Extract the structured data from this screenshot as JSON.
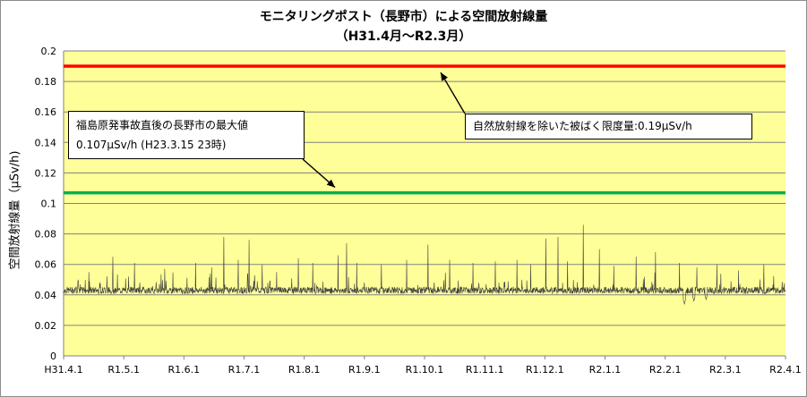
{
  "title_line1": "モニタリングポスト（長野市）による空間放射線量",
  "title_line2": "（H31.4月～R2.3月）",
  "colors": {
    "plot_bg": "#ffff99",
    "limit_line": "#ff0000",
    "max_line": "#00b050",
    "series": "#404040",
    "grid": "#808080"
  },
  "annotations": {
    "max_line1": "福島原発事故直後の長野市の最大値",
    "max_line2": "0.107μSv/h (H23.3.15 23時)",
    "limit_text": "自然放射線を除いた被ばく限度量:0.19μSv/h"
  },
  "chart_data": {
    "type": "line",
    "title": "モニタリングポスト（長野市）による空間放射線量",
    "subtitle": "（H31.4月～R2.3月）",
    "xlabel": "",
    "ylabel": "空間放射線量（μSv/h)",
    "ylim": [
      0,
      0.2
    ],
    "yticks": [
      0,
      0.02,
      0.04,
      0.06,
      0.08,
      0.1,
      0.12,
      0.14,
      0.16,
      0.18,
      0.2
    ],
    "ytick_labels": [
      "0",
      "0.02",
      "0.04",
      "0.06",
      "0.08",
      "0.1",
      "0.12",
      "0.14",
      "0.16",
      "0.18",
      "0.2"
    ],
    "xtick_labels": [
      "H31.4.1",
      "R1.5.1",
      "R1.6.1",
      "R1.7.1",
      "R1.8.1",
      "R1.9.1",
      "R1.10.1",
      "R1.11.1",
      "R1.12.1",
      "R2.1.1",
      "R2.2.1",
      "R2.3.1",
      "R2.4.1"
    ],
    "grid": true,
    "reference_lines": [
      {
        "value": 0.19,
        "color": "#ff0000"
      },
      {
        "value": 0.107,
        "color": "#00b050"
      }
    ],
    "baseline_value": 0.043,
    "peaks": [
      {
        "t": 0.02,
        "value": 0.05
      },
      {
        "t": 0.035,
        "value": 0.055
      },
      {
        "t": 0.068,
        "value": 0.065
      },
      {
        "t": 0.098,
        "value": 0.061
      },
      {
        "t": 0.14,
        "value": 0.057
      },
      {
        "t": 0.183,
        "value": 0.061
      },
      {
        "t": 0.205,
        "value": 0.058
      },
      {
        "t": 0.222,
        "value": 0.078
      },
      {
        "t": 0.242,
        "value": 0.063
      },
      {
        "t": 0.257,
        "value": 0.076
      },
      {
        "t": 0.275,
        "value": 0.06
      },
      {
        "t": 0.295,
        "value": 0.055
      },
      {
        "t": 0.325,
        "value": 0.064
      },
      {
        "t": 0.345,
        "value": 0.061
      },
      {
        "t": 0.38,
        "value": 0.066
      },
      {
        "t": 0.392,
        "value": 0.074
      },
      {
        "t": 0.406,
        "value": 0.061
      },
      {
        "t": 0.44,
        "value": 0.06
      },
      {
        "t": 0.475,
        "value": 0.063
      },
      {
        "t": 0.505,
        "value": 0.073
      },
      {
        "t": 0.535,
        "value": 0.063
      },
      {
        "t": 0.567,
        "value": 0.061
      },
      {
        "t": 0.598,
        "value": 0.062
      },
      {
        "t": 0.628,
        "value": 0.063
      },
      {
        "t": 0.647,
        "value": 0.06
      },
      {
        "t": 0.668,
        "value": 0.077
      },
      {
        "t": 0.685,
        "value": 0.078
      },
      {
        "t": 0.698,
        "value": 0.062
      },
      {
        "t": 0.72,
        "value": 0.086
      },
      {
        "t": 0.742,
        "value": 0.07
      },
      {
        "t": 0.762,
        "value": 0.059
      },
      {
        "t": 0.793,
        "value": 0.065
      },
      {
        "t": 0.82,
        "value": 0.068
      },
      {
        "t": 0.853,
        "value": 0.061
      },
      {
        "t": 0.877,
        "value": 0.058
      },
      {
        "t": 0.905,
        "value": 0.06
      },
      {
        "t": 0.935,
        "value": 0.056
      },
      {
        "t": 0.97,
        "value": 0.06
      }
    ],
    "dips": [
      {
        "t": 0.86,
        "value": 0.034
      },
      {
        "t": 0.873,
        "value": 0.036
      },
      {
        "t": 0.89,
        "value": 0.037
      }
    ]
  }
}
